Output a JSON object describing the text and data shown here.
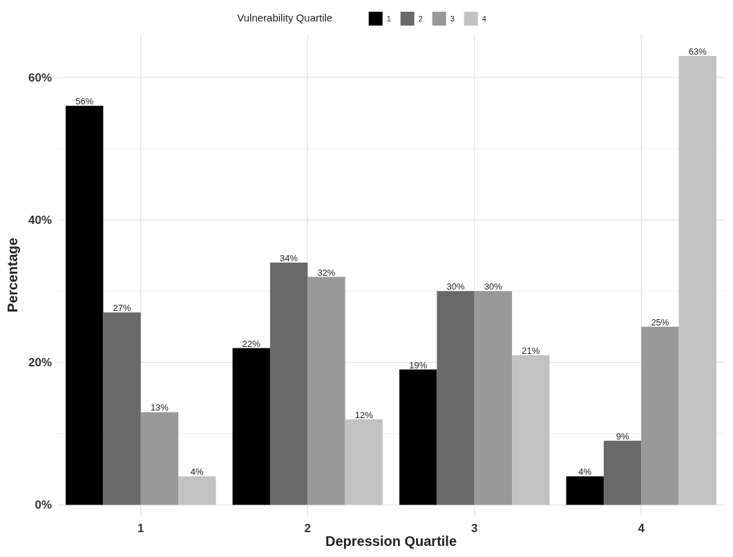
{
  "chart_data": {
    "type": "bar",
    "xlabel": "Depression Quartile",
    "ylabel": "Percentage",
    "legend_title": "Vulnerability Quartile",
    "legend": "top",
    "grid": true,
    "categories": [
      "1",
      "2",
      "3",
      "4"
    ],
    "series": [
      {
        "name": "1",
        "color": "#000000",
        "values": [
          56,
          22,
          19,
          4
        ],
        "value_labels": [
          "56%",
          "22%",
          "19%",
          "4%"
        ]
      },
      {
        "name": "2",
        "color": "#696969",
        "values": [
          27,
          34,
          30,
          9
        ],
        "value_labels": [
          "27%",
          "34%",
          "30%",
          "9%"
        ]
      },
      {
        "name": "3",
        "color": "#999999",
        "values": [
          13,
          32,
          30,
          25
        ],
        "value_labels": [
          "13%",
          "32%",
          "30%",
          "25%"
        ]
      },
      {
        "name": "4",
        "color": "#c2c2c2",
        "values": [
          4,
          12,
          21,
          63
        ],
        "value_labels": [
          "4%",
          "12%",
          "21%",
          "63%"
        ]
      }
    ],
    "ylim": [
      -1.5,
      66
    ],
    "yticks": [
      {
        "value": 0,
        "label": "0%"
      },
      {
        "value": 10,
        "label": null
      },
      {
        "value": 20,
        "label": "20%"
      },
      {
        "value": 30,
        "label": null
      },
      {
        "value": 40,
        "label": "40%"
      },
      {
        "value": 50,
        "label": null
      },
      {
        "value": 60,
        "label": "60%"
      }
    ]
  }
}
